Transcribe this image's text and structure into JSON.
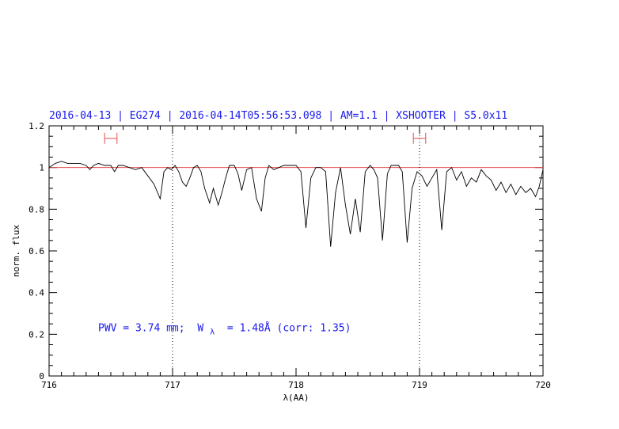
{
  "chart_data": {
    "type": "line",
    "title": "2016-04-13 | EG274 | 2016-04-14T05:56:53.098 | AM=1.1 | XSHOOTER | S5.0x11",
    "xlabel": "λ(AA)",
    "ylabel": "norm. flux",
    "xlim": [
      716,
      720
    ],
    "ylim": [
      0,
      1.2
    ],
    "x_ticks": [
      716,
      717,
      718,
      719,
      720
    ],
    "x_tick_labels": [
      "716",
      "717",
      "718",
      "719",
      "720"
    ],
    "y_ticks": [
      0,
      0.2,
      0.4,
      0.6,
      0.8,
      1,
      1.2
    ],
    "y_tick_labels": [
      "0",
      "0.2",
      "0.4",
      "0.6",
      "0.8",
      "1",
      "1.2"
    ],
    "grid": false,
    "reference_line_y": 1.0,
    "vertical_dotted_lines_x": [
      717,
      719
    ],
    "continuum_windows": [
      {
        "x_start": 716.45,
        "x_end": 716.55,
        "y": 1.14
      },
      {
        "x_start": 718.95,
        "x_end": 719.05,
        "y": 1.14
      }
    ],
    "annotation": {
      "pwv_text": "PWV = 3.74 mm;",
      "w_prefix": "W",
      "w_sub": "λ",
      "w_text": "= 1.48Å (corr: 1.35)",
      "x": 716.5,
      "y": 0.2
    },
    "series": [
      {
        "values_x": [
          716.0,
          716.05,
          716.1,
          716.15,
          716.2,
          716.25,
          716.3,
          716.33,
          716.36,
          716.4,
          716.45,
          716.5,
          716.53,
          716.56,
          716.6,
          716.65,
          716.7,
          716.75,
          716.8,
          716.85,
          716.9,
          716.93,
          716.96,
          716.99,
          717.02,
          717.05,
          717.08,
          717.11,
          717.14,
          717.17,
          717.2,
          717.23,
          717.26,
          717.3,
          717.33,
          717.37,
          717.4,
          717.43,
          717.46,
          717.5,
          717.53,
          717.56,
          717.6,
          717.64,
          717.68,
          717.72,
          717.75,
          717.78,
          717.82,
          717.86,
          717.9,
          717.95,
          718.0,
          718.04,
          718.08,
          718.12,
          718.16,
          718.2,
          718.24,
          718.28,
          718.32,
          718.36,
          718.4,
          718.44,
          718.48,
          718.52,
          718.56,
          718.6,
          718.63,
          718.66,
          718.7,
          718.74,
          718.77,
          718.8,
          718.83,
          718.86,
          718.9,
          718.94,
          718.98,
          719.02,
          719.06,
          719.1,
          719.14,
          719.18,
          719.22,
          719.26,
          719.3,
          719.34,
          719.38,
          719.42,
          719.46,
          719.5,
          719.54,
          719.58,
          719.62,
          719.66,
          719.7,
          719.74,
          719.78,
          719.82,
          719.86,
          719.9,
          719.94,
          719.97,
          720.0
        ],
        "values_y": [
          1.0,
          1.02,
          1.03,
          1.02,
          1.02,
          1.02,
          1.01,
          0.99,
          1.01,
          1.02,
          1.01,
          1.01,
          0.98,
          1.01,
          1.01,
          1.0,
          0.99,
          1.0,
          0.96,
          0.92,
          0.85,
          0.98,
          1.0,
          0.99,
          1.01,
          0.98,
          0.93,
          0.91,
          0.95,
          1.0,
          1.01,
          0.98,
          0.9,
          0.83,
          0.9,
          0.82,
          0.88,
          0.95,
          1.01,
          1.01,
          0.97,
          0.89,
          0.99,
          1.0,
          0.85,
          0.79,
          0.95,
          1.01,
          0.99,
          1.0,
          1.01,
          1.01,
          1.01,
          0.98,
          0.71,
          0.95,
          1.0,
          1.0,
          0.98,
          0.62,
          0.88,
          1.0,
          0.82,
          0.68,
          0.85,
          0.69,
          0.98,
          1.01,
          0.99,
          0.95,
          0.65,
          0.97,
          1.01,
          1.01,
          1.01,
          0.98,
          0.64,
          0.9,
          0.98,
          0.96,
          0.91,
          0.95,
          0.99,
          0.7,
          0.98,
          1.0,
          0.94,
          0.98,
          0.91,
          0.95,
          0.93,
          0.99,
          0.96,
          0.94,
          0.89,
          0.93,
          0.88,
          0.92,
          0.87,
          0.91,
          0.88,
          0.9,
          0.86,
          0.91,
          0.99
        ]
      }
    ]
  }
}
